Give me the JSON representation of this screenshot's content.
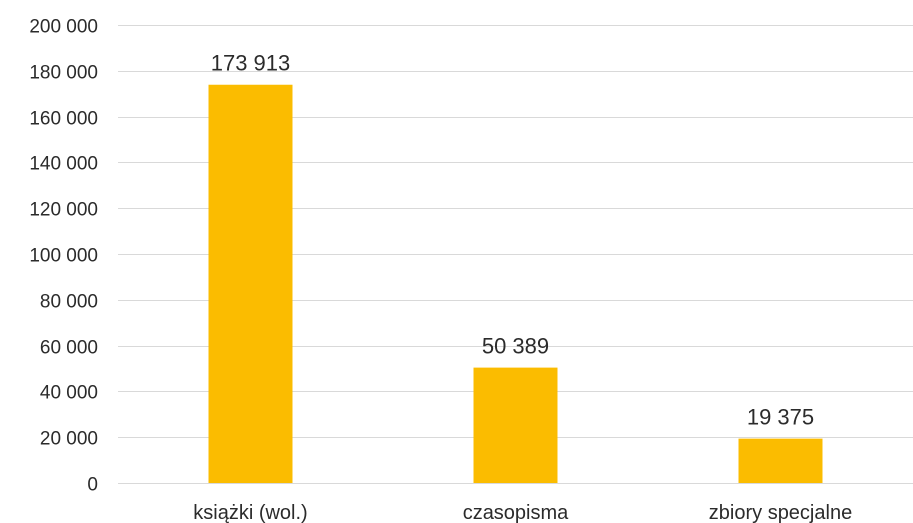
{
  "chart_data": {
    "type": "bar",
    "title": "",
    "xlabel": "",
    "ylabel": "",
    "categories": [
      "książki (wol.)",
      "czasopisma",
      "zbiory specjalne"
    ],
    "values": [
      173913,
      50389,
      19375
    ],
    "data_labels": [
      "173 913",
      "50 389",
      "19 375"
    ],
    "ylim": [
      0,
      200000
    ],
    "y_ticks": [
      0,
      20000,
      40000,
      60000,
      80000,
      100000,
      120000,
      140000,
      160000,
      180000,
      200000
    ],
    "y_tick_labels": [
      "0",
      "20 000",
      "40 000",
      "60 000",
      "80 000",
      "100 000",
      "120 000",
      "140 000",
      "160 000",
      "180 000",
      "200 000"
    ],
    "grid": true,
    "legend": "none",
    "bar_color": "#FBBC00",
    "gridline_color": "#D9D9D9",
    "text_color": "#2B2B2B"
  }
}
